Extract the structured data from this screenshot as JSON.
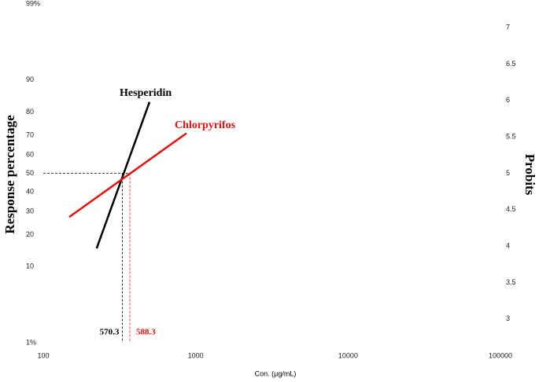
{
  "chart_data": {
    "type": "line",
    "x_label": "Con. (μg/mL)",
    "y_label": "Response percentage",
    "y2_label": "Probits",
    "x_log": true,
    "y_scale": "probit",
    "xlim": [
      100,
      100000
    ],
    "xticks": [
      100,
      1000,
      10000,
      100000
    ],
    "ylim": [
      1,
      99
    ],
    "yticks": [
      {
        "value": 99,
        "label": "99%"
      },
      90,
      80,
      70,
      60,
      50,
      40,
      30,
      20,
      10,
      {
        "value": 1,
        "label": "1%"
      }
    ],
    "y2lim": [
      2.674,
      7.326
    ],
    "y2ticks": [
      3,
      3.5,
      4,
      4.5,
      5,
      5.5,
      6,
      6.5,
      7
    ],
    "series": [
      {
        "name": "Hesperidin",
        "color": "#000000",
        "axis": "y2",
        "x": [
          224,
          498
        ],
        "values": [
          3.97,
          5.98
        ]
      },
      {
        "name": "Chlorpyrifos",
        "color": "#e01010",
        "axis": "y2",
        "x": [
          148,
          871
        ],
        "values": [
          4.4,
          5.55
        ]
      }
    ],
    "reference_level": 5,
    "reference_lines": [
      {
        "x": 330,
        "color": "#000000"
      },
      {
        "x": 370,
        "color": "#e01010"
      }
    ],
    "annotations": [
      {
        "text": "570.3",
        "color": "#000000"
      },
      {
        "text": "588.3",
        "color": "#e01010"
      }
    ]
  }
}
